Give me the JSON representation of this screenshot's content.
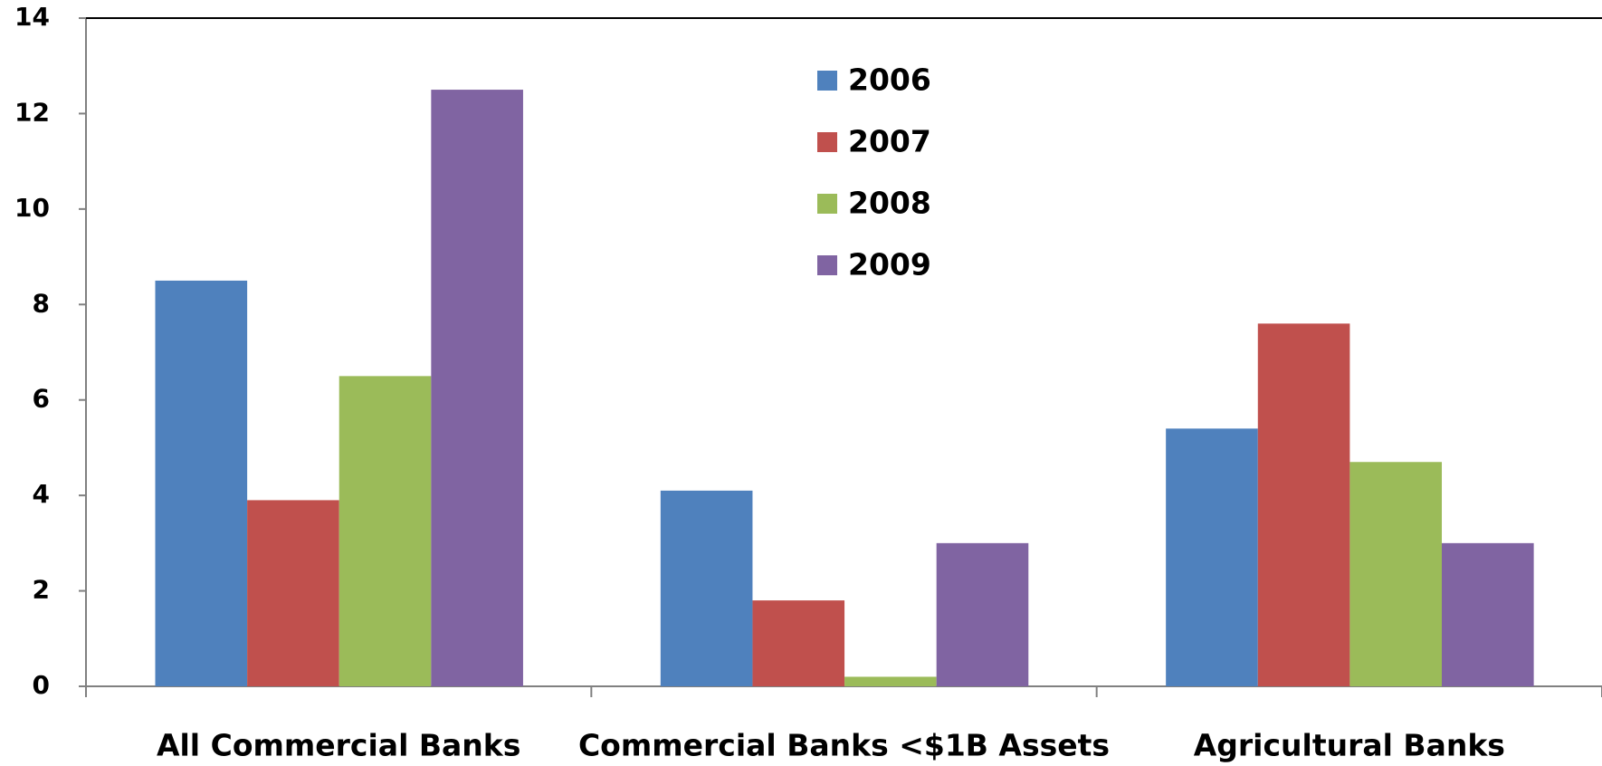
{
  "chart_data": {
    "type": "bar",
    "categories": [
      "All Commercial Banks",
      "Commercial Banks <$1B Assets",
      "Agricultural Banks"
    ],
    "series": [
      {
        "name": "2006",
        "color": "#4f81bd",
        "values": [
          8.5,
          4.1,
          5.4
        ]
      },
      {
        "name": "2007",
        "color": "#c0504d",
        "values": [
          3.9,
          1.8,
          7.6
        ]
      },
      {
        "name": "2008",
        "color": "#9bbb59",
        "values": [
          6.5,
          0.2,
          4.7
        ]
      },
      {
        "name": "2009",
        "color": "#8064a2",
        "values": [
          12.5,
          3.0,
          3.0
        ]
      }
    ],
    "ylim": [
      0,
      14
    ],
    "yticks": [
      0,
      2,
      4,
      6,
      8,
      10,
      12,
      14
    ],
    "grid": false
  }
}
